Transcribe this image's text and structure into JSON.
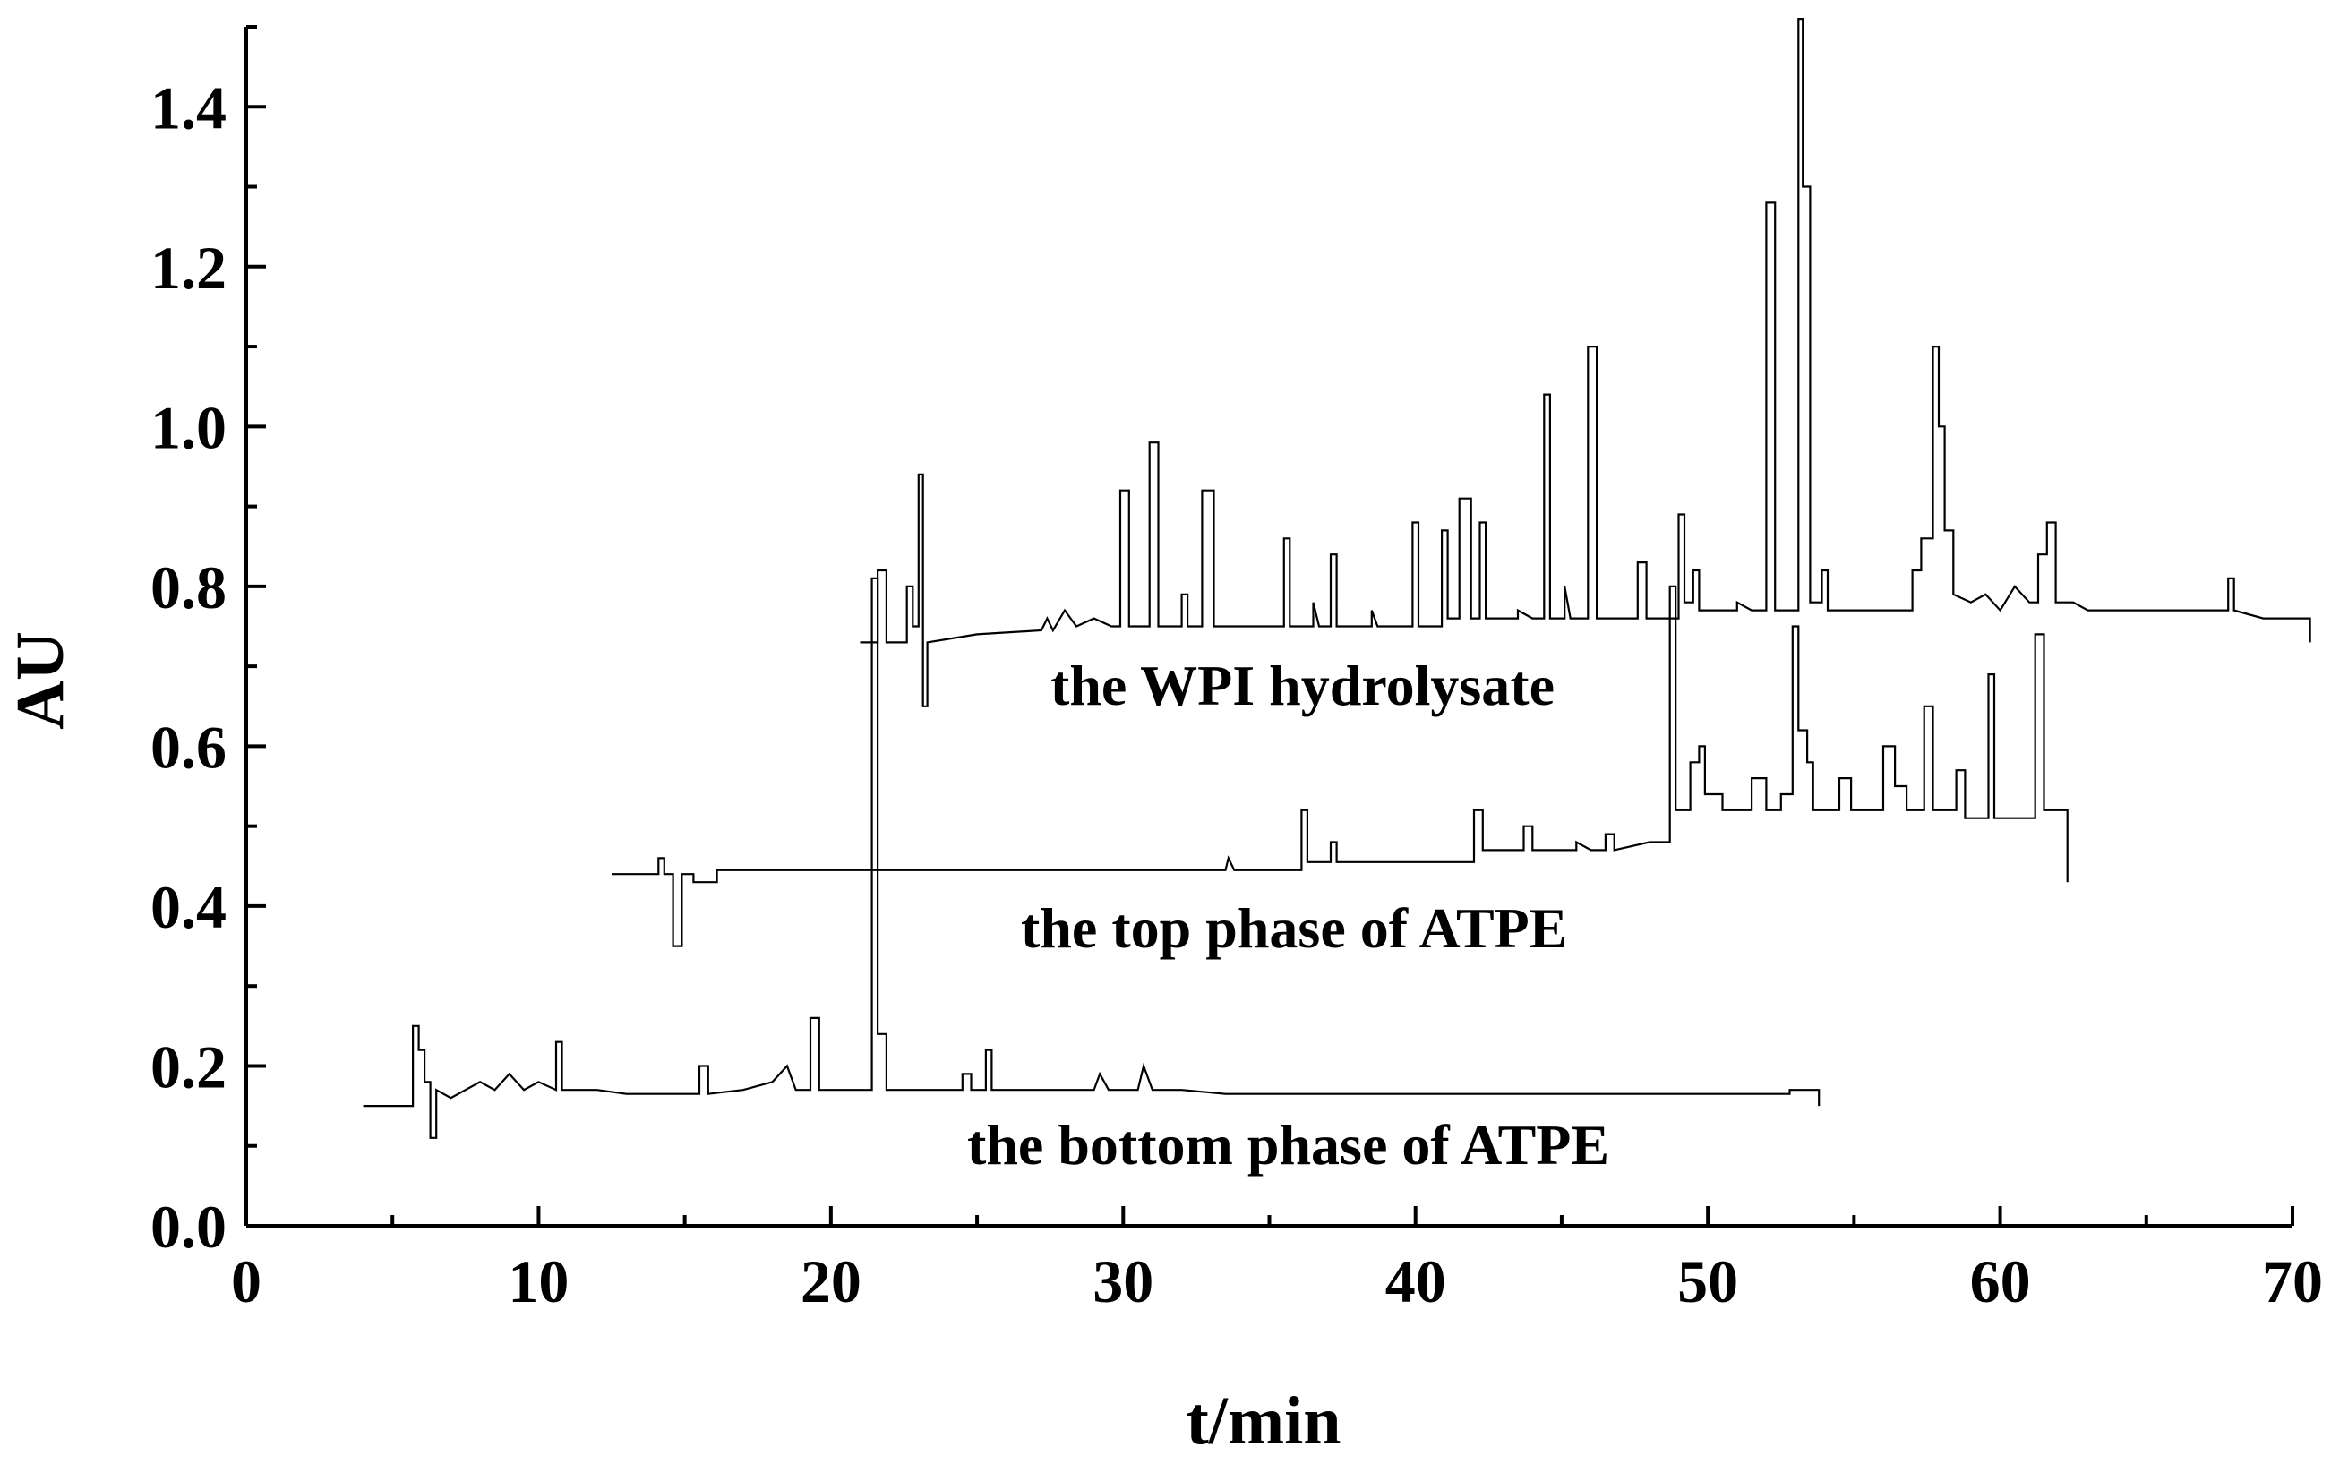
{
  "chart_data": {
    "type": "line",
    "title": "",
    "xlabel": "t/min",
    "ylabel": "AU",
    "xlim": [
      0,
      70
    ],
    "ylim": [
      0,
      1.5
    ],
    "x_ticks": [
      0,
      10,
      20,
      30,
      40,
      50,
      60,
      70
    ],
    "x_tick_labels": [
      "0",
      "10",
      "20",
      "30",
      "40",
      "50",
      "60",
      "70"
    ],
    "y_ticks": [
      0.0,
      0.2,
      0.4,
      0.6,
      0.8,
      1.0,
      1.2,
      1.4
    ],
    "y_tick_labels": [
      "0.0",
      "0.2",
      "0.4",
      "0.6",
      "0.8",
      "1.0",
      "1.2",
      "1.4"
    ],
    "grid": false,
    "series": [
      {
        "name": "the WPI hydrolysate",
        "color": "#000000",
        "points": [
          [
            21,
            0.73
          ],
          [
            21.6,
            0.73
          ],
          [
            21.6,
            0.82
          ],
          [
            21.9,
            0.82
          ],
          [
            21.9,
            0.73
          ],
          [
            22.6,
            0.73
          ],
          [
            22.6,
            0.8
          ],
          [
            22.8,
            0.8
          ],
          [
            22.8,
            0.75
          ],
          [
            23.0,
            0.75
          ],
          [
            23.0,
            0.94
          ],
          [
            23.15,
            0.94
          ],
          [
            23.15,
            0.65
          ],
          [
            23.3,
            0.65
          ],
          [
            23.3,
            0.73
          ],
          [
            25,
            0.74
          ],
          [
            27.2,
            0.745
          ],
          [
            27.4,
            0.76
          ],
          [
            27.6,
            0.745
          ],
          [
            28,
            0.77
          ],
          [
            28.4,
            0.75
          ],
          [
            29,
            0.76
          ],
          [
            29.6,
            0.75
          ],
          [
            29.9,
            0.75
          ],
          [
            29.9,
            0.92
          ],
          [
            30.2,
            0.92
          ],
          [
            30.2,
            0.75
          ],
          [
            30.6,
            0.75
          ],
          [
            30.9,
            0.75
          ],
          [
            30.9,
            0.98
          ],
          [
            31.2,
            0.98
          ],
          [
            31.2,
            0.75
          ],
          [
            32.0,
            0.75
          ],
          [
            32.0,
            0.79
          ],
          [
            32.2,
            0.79
          ],
          [
            32.2,
            0.75
          ],
          [
            32.7,
            0.75
          ],
          [
            32.7,
            0.92
          ],
          [
            33.1,
            0.92
          ],
          [
            33.1,
            0.75
          ],
          [
            35.5,
            0.75
          ],
          [
            35.5,
            0.86
          ],
          [
            35.7,
            0.86
          ],
          [
            35.7,
            0.75
          ],
          [
            36.5,
            0.75
          ],
          [
            36.5,
            0.78
          ],
          [
            36.7,
            0.75
          ],
          [
            37.1,
            0.75
          ],
          [
            37.1,
            0.84
          ],
          [
            37.3,
            0.84
          ],
          [
            37.3,
            0.75
          ],
          [
            38.5,
            0.75
          ],
          [
            38.5,
            0.77
          ],
          [
            38.7,
            0.75
          ],
          [
            39.9,
            0.75
          ],
          [
            39.9,
            0.88
          ],
          [
            40.1,
            0.88
          ],
          [
            40.1,
            0.75
          ],
          [
            40.9,
            0.75
          ],
          [
            40.9,
            0.87
          ],
          [
            41.1,
            0.87
          ],
          [
            41.1,
            0.76
          ],
          [
            41.5,
            0.76
          ],
          [
            41.5,
            0.91
          ],
          [
            41.9,
            0.91
          ],
          [
            41.9,
            0.76
          ],
          [
            42.2,
            0.76
          ],
          [
            42.2,
            0.88
          ],
          [
            42.4,
            0.88
          ],
          [
            42.4,
            0.76
          ],
          [
            43.5,
            0.76
          ],
          [
            43.5,
            0.77
          ],
          [
            44.0,
            0.76
          ],
          [
            44.4,
            0.76
          ],
          [
            44.4,
            1.04
          ],
          [
            44.6,
            1.04
          ],
          [
            44.6,
            0.76
          ],
          [
            45.1,
            0.76
          ],
          [
            45.1,
            0.8
          ],
          [
            45.3,
            0.76
          ],
          [
            45.9,
            0.76
          ],
          [
            45.9,
            1.1
          ],
          [
            46.2,
            1.1
          ],
          [
            46.2,
            0.76
          ],
          [
            47.6,
            0.76
          ],
          [
            47.6,
            0.83
          ],
          [
            47.9,
            0.83
          ],
          [
            47.9,
            0.76
          ],
          [
            49.0,
            0.76
          ],
          [
            49.0,
            0.89
          ],
          [
            49.2,
            0.89
          ],
          [
            49.2,
            0.78
          ],
          [
            49.5,
            0.78
          ],
          [
            49.5,
            0.82
          ],
          [
            49.7,
            0.82
          ],
          [
            49.7,
            0.77
          ],
          [
            51.0,
            0.77
          ],
          [
            51.0,
            0.78
          ],
          [
            51.5,
            0.77
          ],
          [
            52.0,
            0.77
          ],
          [
            52.0,
            1.28
          ],
          [
            52.3,
            1.28
          ],
          [
            52.3,
            0.77
          ],
          [
            53.1,
            0.77
          ],
          [
            53.1,
            1.51
          ],
          [
            53.25,
            1.51
          ],
          [
            53.25,
            1.3
          ],
          [
            53.5,
            1.3
          ],
          [
            53.5,
            0.78
          ],
          [
            53.9,
            0.78
          ],
          [
            53.9,
            0.82
          ],
          [
            54.1,
            0.82
          ],
          [
            54.1,
            0.77
          ],
          [
            56,
            0.77
          ],
          [
            57.0,
            0.77
          ],
          [
            57.0,
            0.82
          ],
          [
            57.3,
            0.82
          ],
          [
            57.3,
            0.86
          ],
          [
            57.7,
            0.86
          ],
          [
            57.7,
            1.1
          ],
          [
            57.9,
            1.1
          ],
          [
            57.9,
            1.0
          ],
          [
            58.1,
            1.0
          ],
          [
            58.1,
            0.87
          ],
          [
            58.4,
            0.87
          ],
          [
            58.4,
            0.79
          ],
          [
            59,
            0.78
          ],
          [
            59.5,
            0.79
          ],
          [
            60.0,
            0.77
          ],
          [
            60.5,
            0.8
          ],
          [
            61.0,
            0.78
          ],
          [
            61.3,
            0.78
          ],
          [
            61.3,
            0.84
          ],
          [
            61.6,
            0.84
          ],
          [
            61.6,
            0.88
          ],
          [
            61.9,
            0.88
          ],
          [
            61.9,
            0.78
          ],
          [
            62.5,
            0.78
          ],
          [
            63,
            0.77
          ],
          [
            64,
            0.77
          ],
          [
            65,
            0.77
          ],
          [
            66,
            0.77
          ],
          [
            67,
            0.77
          ],
          [
            67.8,
            0.77
          ],
          [
            67.8,
            0.81
          ],
          [
            68.0,
            0.81
          ],
          [
            68.0,
            0.77
          ],
          [
            69,
            0.76
          ],
          [
            70,
            0.76
          ],
          [
            70.6,
            0.76
          ],
          [
            70.6,
            0.73
          ]
        ]
      },
      {
        "name": "the top phase of ATPE",
        "color": "#000000",
        "points": [
          [
            12.5,
            0.44
          ],
          [
            14.1,
            0.44
          ],
          [
            14.1,
            0.46
          ],
          [
            14.3,
            0.46
          ],
          [
            14.3,
            0.44
          ],
          [
            14.6,
            0.44
          ],
          [
            14.6,
            0.35
          ],
          [
            14.9,
            0.35
          ],
          [
            14.9,
            0.44
          ],
          [
            15.3,
            0.44
          ],
          [
            15.3,
            0.43
          ],
          [
            16.1,
            0.43
          ],
          [
            16.1,
            0.445
          ],
          [
            20,
            0.445
          ],
          [
            25,
            0.445
          ],
          [
            30,
            0.445
          ],
          [
            33.5,
            0.445
          ],
          [
            33.6,
            0.46
          ],
          [
            33.8,
            0.445
          ],
          [
            36.1,
            0.445
          ],
          [
            36.1,
            0.52
          ],
          [
            36.3,
            0.52
          ],
          [
            36.3,
            0.455
          ],
          [
            37.1,
            0.455
          ],
          [
            37.1,
            0.48
          ],
          [
            37.3,
            0.48
          ],
          [
            37.3,
            0.455
          ],
          [
            40,
            0.455
          ],
          [
            42.0,
            0.455
          ],
          [
            42.0,
            0.52
          ],
          [
            42.3,
            0.52
          ],
          [
            42.3,
            0.47
          ],
          [
            43.7,
            0.47
          ],
          [
            43.7,
            0.5
          ],
          [
            44.0,
            0.5
          ],
          [
            44.0,
            0.47
          ],
          [
            45.5,
            0.47
          ],
          [
            45.5,
            0.48
          ],
          [
            46.0,
            0.47
          ],
          [
            46.5,
            0.47
          ],
          [
            46.5,
            0.49
          ],
          [
            46.8,
            0.49
          ],
          [
            46.8,
            0.47
          ],
          [
            48.0,
            0.48
          ],
          [
            48.7,
            0.48
          ],
          [
            48.7,
            0.8
          ],
          [
            48.9,
            0.8
          ],
          [
            48.9,
            0.52
          ],
          [
            49.4,
            0.52
          ],
          [
            49.4,
            0.58
          ],
          [
            49.7,
            0.58
          ],
          [
            49.7,
            0.6
          ],
          [
            49.9,
            0.6
          ],
          [
            49.9,
            0.54
          ],
          [
            50.5,
            0.54
          ],
          [
            50.5,
            0.52
          ],
          [
            51.5,
            0.52
          ],
          [
            51.5,
            0.56
          ],
          [
            52.0,
            0.56
          ],
          [
            52.0,
            0.52
          ],
          [
            52.5,
            0.52
          ],
          [
            52.5,
            0.54
          ],
          [
            52.9,
            0.54
          ],
          [
            52.9,
            0.75
          ],
          [
            53.1,
            0.75
          ],
          [
            53.1,
            0.62
          ],
          [
            53.4,
            0.62
          ],
          [
            53.4,
            0.58
          ],
          [
            53.6,
            0.58
          ],
          [
            53.6,
            0.52
          ],
          [
            54.5,
            0.52
          ],
          [
            54.5,
            0.56
          ],
          [
            54.9,
            0.56
          ],
          [
            54.9,
            0.52
          ],
          [
            56.0,
            0.52
          ],
          [
            56.0,
            0.6
          ],
          [
            56.4,
            0.6
          ],
          [
            56.4,
            0.55
          ],
          [
            56.8,
            0.55
          ],
          [
            56.8,
            0.52
          ],
          [
            57.4,
            0.52
          ],
          [
            57.4,
            0.65
          ],
          [
            57.7,
            0.65
          ],
          [
            57.7,
            0.52
          ],
          [
            58.5,
            0.52
          ],
          [
            58.5,
            0.57
          ],
          [
            58.8,
            0.57
          ],
          [
            58.8,
            0.51
          ],
          [
            59.6,
            0.51
          ],
          [
            59.6,
            0.69
          ],
          [
            59.8,
            0.69
          ],
          [
            59.8,
            0.51
          ],
          [
            61.2,
            0.51
          ],
          [
            61.2,
            0.74
          ],
          [
            61.5,
            0.74
          ],
          [
            61.5,
            0.52
          ],
          [
            62.3,
            0.52
          ],
          [
            62.3,
            0.43
          ]
        ]
      },
      {
        "name": "the bottom phase of ATPE",
        "color": "#000000",
        "points": [
          [
            4,
            0.15
          ],
          [
            5.7,
            0.15
          ],
          [
            5.7,
            0.25
          ],
          [
            5.9,
            0.25
          ],
          [
            5.9,
            0.22
          ],
          [
            6.1,
            0.22
          ],
          [
            6.1,
            0.18
          ],
          [
            6.3,
            0.18
          ],
          [
            6.3,
            0.11
          ],
          [
            6.5,
            0.11
          ],
          [
            6.5,
            0.17
          ],
          [
            7,
            0.16
          ],
          [
            7.5,
            0.17
          ],
          [
            8,
            0.18
          ],
          [
            8.5,
            0.17
          ],
          [
            9,
            0.19
          ],
          [
            9.5,
            0.17
          ],
          [
            10,
            0.18
          ],
          [
            10.6,
            0.17
          ],
          [
            10.6,
            0.23
          ],
          [
            10.8,
            0.23
          ],
          [
            10.8,
            0.17
          ],
          [
            12,
            0.17
          ],
          [
            13,
            0.165
          ],
          [
            14,
            0.165
          ],
          [
            15.5,
            0.165
          ],
          [
            15.5,
            0.2
          ],
          [
            15.8,
            0.2
          ],
          [
            15.8,
            0.165
          ],
          [
            17,
            0.17
          ],
          [
            18,
            0.18
          ],
          [
            18.5,
            0.2
          ],
          [
            18.8,
            0.17
          ],
          [
            19.3,
            0.17
          ],
          [
            19.3,
            0.26
          ],
          [
            19.6,
            0.26
          ],
          [
            19.6,
            0.17
          ],
          [
            21.4,
            0.17
          ],
          [
            21.4,
            0.81
          ],
          [
            21.6,
            0.81
          ],
          [
            21.6,
            0.24
          ],
          [
            21.9,
            0.24
          ],
          [
            21.9,
            0.17
          ],
          [
            23,
            0.17
          ],
          [
            24.5,
            0.17
          ],
          [
            24.5,
            0.19
          ],
          [
            24.8,
            0.19
          ],
          [
            24.8,
            0.17
          ],
          [
            25.3,
            0.17
          ],
          [
            25.3,
            0.22
          ],
          [
            25.5,
            0.22
          ],
          [
            25.5,
            0.17
          ],
          [
            27,
            0.17
          ],
          [
            29,
            0.17
          ],
          [
            29.2,
            0.19
          ],
          [
            29.5,
            0.17
          ],
          [
            30.5,
            0.17
          ],
          [
            30.7,
            0.2
          ],
          [
            31,
            0.17
          ],
          [
            32,
            0.17
          ],
          [
            33.5,
            0.165
          ],
          [
            38,
            0.165
          ],
          [
            45,
            0.165
          ],
          [
            50,
            0.165
          ],
          [
            52.8,
            0.165
          ],
          [
            52.8,
            0.17
          ],
          [
            53.8,
            0.17
          ],
          [
            53.8,
            0.15
          ]
        ]
      }
    ]
  }
}
